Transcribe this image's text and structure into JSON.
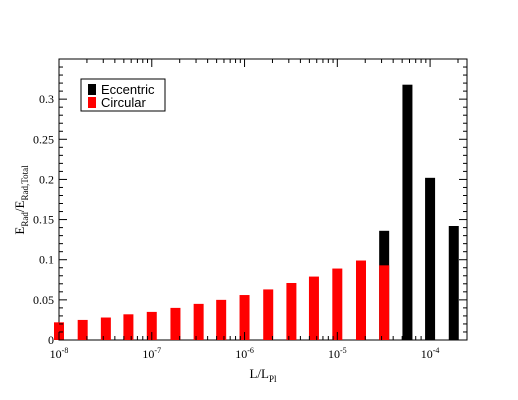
{
  "chart_data": {
    "type": "bar",
    "xscale": "log",
    "xlim": [
      1e-08,
      0.00025
    ],
    "ylim": [
      0,
      0.35
    ],
    "grid": false,
    "legend_position": "top-left",
    "xlabel": {
      "main": "L/L",
      "sub": "Pl"
    },
    "ylabel": {
      "main": "E",
      "sub1": "Rad",
      "mid": "/E",
      "sub2": "Rad,Total"
    },
    "x_ticks": [
      {
        "value": 1e-08,
        "base": "10",
        "exp": "-8"
      },
      {
        "value": 1e-07,
        "base": "10",
        "exp": "-7"
      },
      {
        "value": 1e-06,
        "base": "10",
        "exp": "-6"
      },
      {
        "value": 1e-05,
        "base": "10",
        "exp": "-5"
      },
      {
        "value": 0.0001,
        "base": "10",
        "exp": "-4"
      }
    ],
    "y_ticks": [
      {
        "value": 0,
        "label": "0"
      },
      {
        "value": 0.05,
        "label": "0.05"
      },
      {
        "value": 0.1,
        "label": "0.1"
      },
      {
        "value": 0.15,
        "label": "0.15"
      },
      {
        "value": 0.2,
        "label": "0.2"
      },
      {
        "value": 0.25,
        "label": "0.25"
      },
      {
        "value": 0.3,
        "label": "0.3"
      }
    ],
    "series": [
      {
        "name": "Eccentric",
        "color": "#000000",
        "points": [
          {
            "x": 3.2e-05,
            "y": 0.136
          },
          {
            "x": 5.7e-05,
            "y": 0.318
          },
          {
            "x": 0.0001,
            "y": 0.202
          },
          {
            "x": 0.00018,
            "y": 0.142
          }
        ]
      },
      {
        "name": "Circular",
        "color": "#ff0000",
        "points": [
          {
            "x": 1e-08,
            "y": 0.022
          },
          {
            "x": 1.8e-08,
            "y": 0.025
          },
          {
            "x": 3.2e-08,
            "y": 0.028
          },
          {
            "x": 5.6e-08,
            "y": 0.032
          },
          {
            "x": 1e-07,
            "y": 0.035
          },
          {
            "x": 1.8e-07,
            "y": 0.04
          },
          {
            "x": 3.2e-07,
            "y": 0.045
          },
          {
            "x": 5.6e-07,
            "y": 0.05
          },
          {
            "x": 1e-06,
            "y": 0.056
          },
          {
            "x": 1.8e-06,
            "y": 0.063
          },
          {
            "x": 3.2e-06,
            "y": 0.071
          },
          {
            "x": 5.6e-06,
            "y": 0.079
          },
          {
            "x": 1e-05,
            "y": 0.089
          },
          {
            "x": 1.8e-05,
            "y": 0.099
          },
          {
            "x": 3.2e-05,
            "y": 0.093
          }
        ]
      }
    ]
  }
}
